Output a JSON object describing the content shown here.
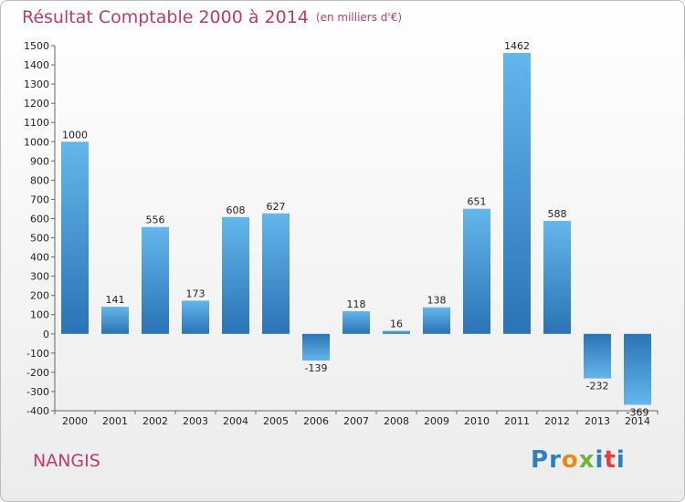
{
  "header": {
    "title": "Résultat Comptable 2000 à 2014",
    "unit": "(en milliers d'€)"
  },
  "footer": {
    "city": "NANGIS",
    "brand_letters": [
      {
        "ch": "P",
        "color": "#2d7fc1"
      },
      {
        "ch": "r",
        "color": "#2d7fc1"
      },
      {
        "ch": "o",
        "color": "#e98a1e"
      },
      {
        "ch": "x",
        "color": "#6cb33f"
      },
      {
        "ch": "i",
        "color": "#2d7fc1"
      },
      {
        "ch": "t",
        "color": "#e23f3f"
      },
      {
        "ch": "i",
        "color": "#2d7fc1"
      }
    ]
  },
  "colors": {
    "bar_light": "#64b6ec",
    "bar_dark": "#2a73b5",
    "title": "#c03a6d"
  },
  "chart_data": {
    "type": "bar",
    "categories": [
      "2000",
      "2001",
      "2002",
      "2003",
      "2004",
      "2005",
      "2006",
      "2007",
      "2008",
      "2009",
      "2010",
      "2011",
      "2012",
      "2013",
      "2014"
    ],
    "values": [
      1000,
      141,
      556,
      173,
      608,
      627,
      -139,
      118,
      16,
      138,
      651,
      1462,
      588,
      -232,
      -369
    ],
    "value_labels": [
      "1000",
      "141",
      "556",
      "173",
      "608",
      "627",
      "-139",
      "118",
      "16",
      "138",
      "651",
      "1462",
      "588",
      "-232",
      "-369"
    ],
    "yticks": [
      -400,
      -300,
      -200,
      -100,
      0,
      100,
      200,
      300,
      400,
      500,
      600,
      700,
      800,
      900,
      1000,
      1100,
      1200,
      1300,
      1400,
      1500
    ],
    "ylim": [
      -400,
      1500
    ],
    "grid": false,
    "legend": "none"
  }
}
